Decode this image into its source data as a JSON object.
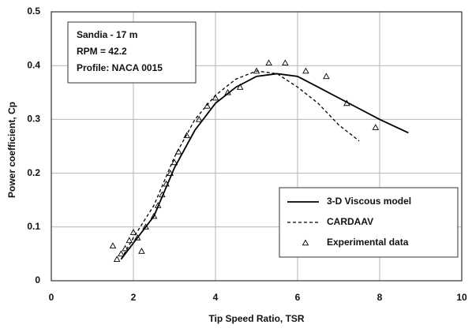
{
  "chart_data": {
    "type": "line",
    "xlabel": "Tip Speed Ratio, TSR",
    "ylabel": "Power coefficient, Cp",
    "annotation": [
      "Sandia - 17 m",
      "RPM = 42.2",
      "Profile: NACA 0015"
    ],
    "xlim": [
      0,
      10
    ],
    "xticks": [
      0,
      2,
      4,
      6,
      8,
      10
    ],
    "ylim": [
      0,
      0.5
    ],
    "yticks": [
      0,
      0.1,
      0.2,
      0.3,
      0.4,
      0.5
    ],
    "grid": true,
    "legend": "lower right",
    "series": [
      {
        "name": "3-D Viscous model",
        "color": "#000000",
        "style": "solid",
        "x": [
          1.7,
          2.0,
          2.5,
          3.0,
          3.5,
          4.0,
          4.5,
          5.0,
          5.5,
          6.0,
          6.5,
          7.0,
          7.5,
          8.0,
          8.7
        ],
        "values": [
          0.04,
          0.07,
          0.12,
          0.21,
          0.28,
          0.33,
          0.36,
          0.38,
          0.385,
          0.38,
          0.36,
          0.34,
          0.32,
          0.3,
          0.275
        ]
      },
      {
        "name": "CARDAAV",
        "color": "#000000",
        "style": "dashed",
        "x": [
          1.7,
          2.0,
          2.5,
          3.0,
          3.5,
          4.0,
          4.5,
          5.0,
          5.5,
          6.0,
          6.5,
          7.0,
          7.5
        ],
        "values": [
          0.04,
          0.08,
          0.14,
          0.23,
          0.3,
          0.345,
          0.375,
          0.39,
          0.385,
          0.36,
          0.33,
          0.29,
          0.26
        ]
      },
      {
        "name": "Experimental data",
        "color": "#000000",
        "style": "markers",
        "x": [
          1.5,
          1.6,
          1.7,
          1.8,
          1.9,
          2.0,
          2.1,
          2.2,
          2.3,
          2.5,
          2.6,
          2.7,
          2.8,
          2.9,
          3.0,
          3.1,
          3.3,
          3.6,
          3.8,
          4.0,
          4.3,
          4.6,
          5.0,
          5.3,
          5.7,
          6.2,
          6.7,
          7.2,
          7.9
        ],
        "values": [
          0.065,
          0.04,
          0.05,
          0.06,
          0.075,
          0.09,
          0.08,
          0.055,
          0.1,
          0.12,
          0.14,
          0.16,
          0.18,
          0.2,
          0.22,
          0.24,
          0.27,
          0.3,
          0.325,
          0.34,
          0.35,
          0.36,
          0.39,
          0.405,
          0.405,
          0.39,
          0.38,
          0.33,
          0.285
        ]
      }
    ]
  }
}
